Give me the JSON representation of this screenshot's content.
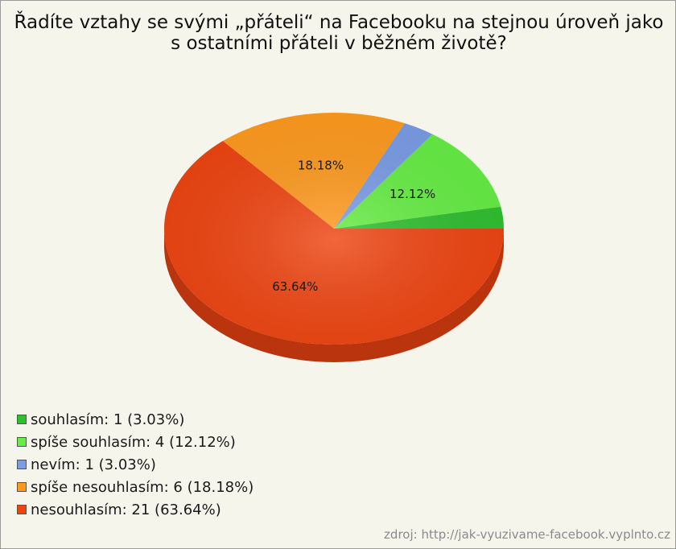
{
  "title_lines": [
    "Řadíte vztahy se svými „přáteli“ na Facebooku na stejnou úroveň jako",
    "s ostatními přáteli v běžném životě?"
  ],
  "chart_data": {
    "type": "pie",
    "title": "Řadíte vztahy se svými „přáteli“ na Facebooku na stejnou úroveň jako s ostatními přáteli v běžném životě?",
    "slices": [
      {
        "label": "souhlasím",
        "value": 1,
        "percent": 3.03,
        "legend_text": "souhlasím: 1 (3.03%)",
        "pie_label": "",
        "color": "#2fbf2f"
      },
      {
        "label": "spíše souhlasím",
        "value": 4,
        "percent": 12.12,
        "legend_text": "spíše souhlasím: 4 (12.12%)",
        "pie_label": "12.12%",
        "color": "#66ee44"
      },
      {
        "label": "nevím",
        "value": 1,
        "percent": 3.03,
        "legend_text": "nevím: 1 (3.03%)",
        "pie_label": "",
        "color": "#7a9ce6"
      },
      {
        "label": "spíše nesouhlasím",
        "value": 6,
        "percent": 18.18,
        "legend_text": "spíše nesouhlasím: 6 (18.18%)",
        "pie_label": "18.18%",
        "color": "#ff9a1e"
      },
      {
        "label": "nesouhlasím",
        "value": 21,
        "percent": 63.64,
        "legend_text": "nesouhlasím: 21 (63.64%)",
        "pie_label": "63.64%",
        "color": "#ee4411"
      }
    ],
    "legend_position": "bottom-left",
    "style": "3d-pie"
  },
  "source": "zdroj: http://jak-vyuzivame-facebook.vyplnto.cz"
}
